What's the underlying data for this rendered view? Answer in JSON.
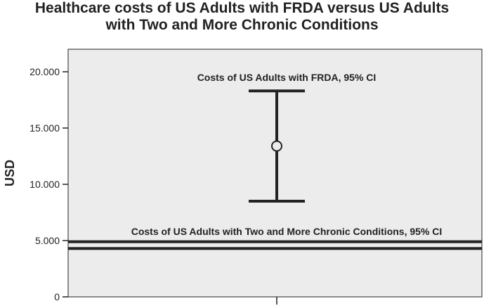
{
  "chart_data": {
    "type": "errorbar",
    "title_lines": [
      "Healthcare costs of US Adults with FRDA versus US Adults",
      "with Two and More Chronic Conditions"
    ],
    "xlabel": "",
    "ylabel": "USD",
    "ylim": [
      0,
      22000
    ],
    "yticks": [
      0,
      5000,
      10000,
      15000,
      20000
    ],
    "ytick_labels": [
      "0",
      "5.000",
      "10.000",
      "15.000",
      "20.000"
    ],
    "grid": false,
    "background_color": "#ececec",
    "line_color": "#222222",
    "frda": {
      "label": "Costs of US Adults with FRDA, 95% CI",
      "mean": 13400,
      "ci_low": 8500,
      "ci_high": 18300
    },
    "chronic": {
      "label": "Costs of US Adults with Two and More Chronic Conditions, 95% CI",
      "ci_low": 4300,
      "ci_high": 4900
    }
  }
}
